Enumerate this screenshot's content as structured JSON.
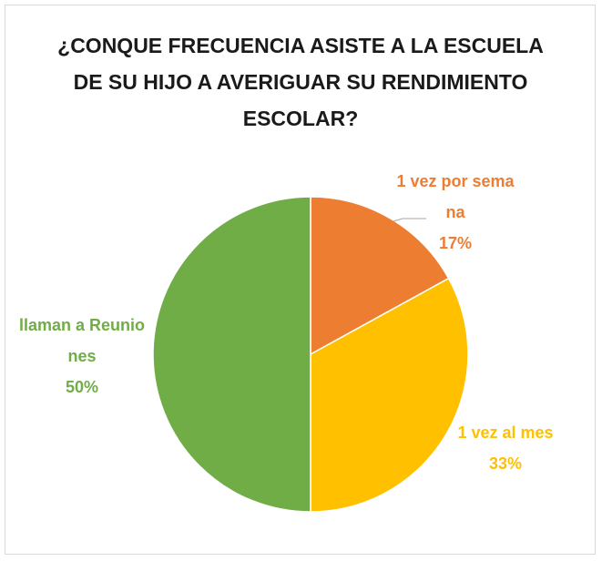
{
  "chart_data": {
    "type": "pie",
    "title": "¿CONQUE FRECUENCIA ASISTE A LA ESCUELA DE SU HIJO A AVERIGUAR SU RENDIMIENTO ESCOLAR?",
    "categories": [
      "1 vez por semana",
      "1 vez al mes",
      "llaman a Reuniones"
    ],
    "values": [
      17,
      33,
      50
    ],
    "value_labels": [
      "17%",
      "33%",
      "50%"
    ],
    "colors": [
      "#ED7D31",
      "#FFC000",
      "#70AD47"
    ]
  }
}
